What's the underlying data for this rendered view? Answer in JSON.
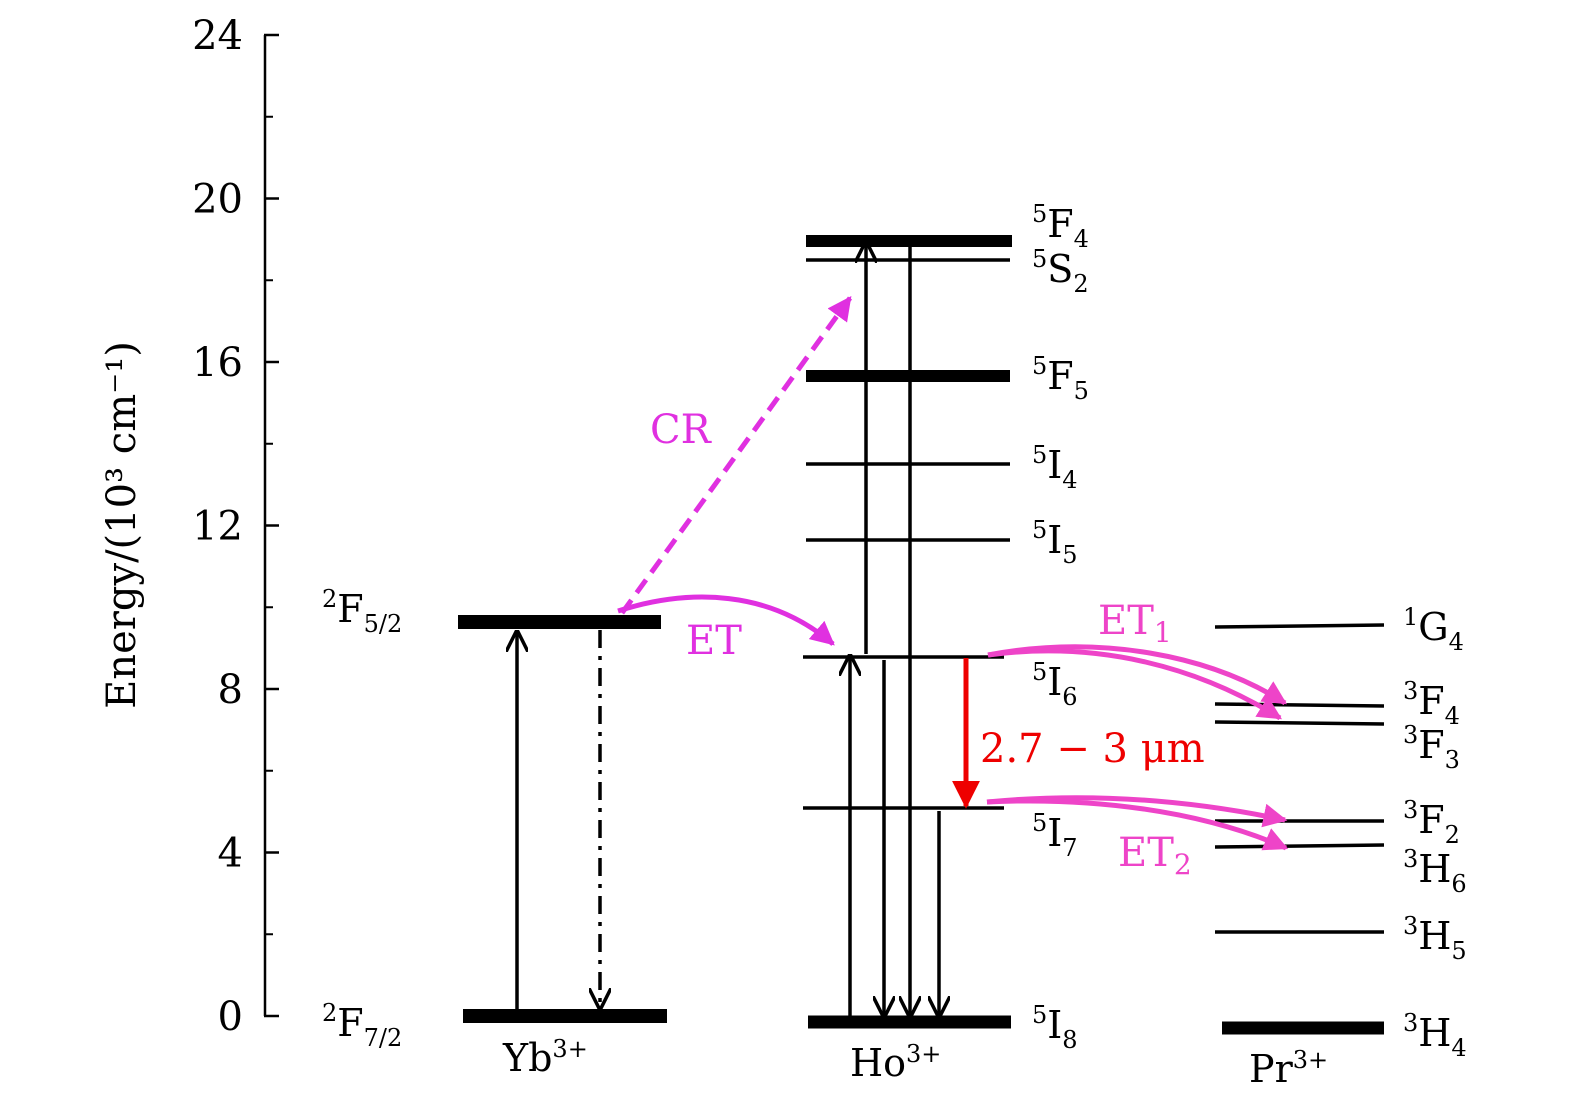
{
  "axis": {
    "ylabel": "Energy/(10³ cm⁻¹)",
    "ylim": [
      0,
      24
    ],
    "major_ticks": [
      0,
      4,
      8,
      12,
      16,
      20,
      24
    ],
    "minor_ticks": [
      2,
      6,
      10,
      14,
      18,
      22
    ],
    "tick_labels": [
      "0",
      "4",
      "8",
      "12",
      "16",
      "20",
      "24"
    ]
  },
  "ions": {
    "yb": {
      "label": "Yb",
      "charge": "3+"
    },
    "ho": {
      "label": "Ho",
      "charge": "3+"
    },
    "pr": {
      "label": "Pr",
      "charge": "3+"
    }
  },
  "levels": {
    "yb": [
      {
        "energy": 0.0,
        "mult": "2",
        "letter": "F",
        "sub": "7/2"
      },
      {
        "energy": 9.6,
        "mult": "2",
        "letter": "F",
        "sub": "5/2"
      }
    ],
    "ho": [
      {
        "energy": -0.2,
        "mult": "5",
        "letter": "I",
        "sub": "8"
      },
      {
        "energy": 5.0,
        "mult": "5",
        "letter": "I",
        "sub": "7"
      },
      {
        "energy": 8.7,
        "mult": "5",
        "letter": "I",
        "sub": "6"
      },
      {
        "energy": 11.6,
        "mult": "5",
        "letter": "I",
        "sub": "5"
      },
      {
        "energy": 13.4,
        "mult": "5",
        "letter": "I",
        "sub": "4"
      },
      {
        "energy": 15.6,
        "mult": "5",
        "letter": "F",
        "sub": "5"
      },
      {
        "energy": 18.5,
        "mult": "5",
        "letter": "S",
        "sub": "2"
      },
      {
        "energy": 19.0,
        "mult": "5",
        "letter": "F",
        "sub": "4"
      }
    ],
    "pr": [
      {
        "energy": -0.3,
        "mult": "3",
        "letter": "H",
        "sub": "4"
      },
      {
        "energy": 2.0,
        "mult": "3",
        "letter": "H",
        "sub": "5"
      },
      {
        "energy": 4.1,
        "mult": "3",
        "letter": "H",
        "sub": "6"
      },
      {
        "energy": 4.7,
        "mult": "3",
        "letter": "F",
        "sub": "2"
      },
      {
        "energy": 7.1,
        "mult": "3",
        "letter": "F",
        "sub": "3"
      },
      {
        "energy": 7.5,
        "mult": "3",
        "letter": "F",
        "sub": "4"
      },
      {
        "energy": 9.5,
        "mult": "1",
        "letter": "G",
        "sub": "4"
      }
    ]
  },
  "annotations": {
    "cr": "CR",
    "et": "ET",
    "et1": {
      "main": "ET",
      "sub": "1"
    },
    "et2": {
      "main": "ET",
      "sub": "2"
    },
    "emission": "2.7 − 3 μm"
  },
  "colors": {
    "magenta": "#e030e0",
    "pink": "#ee44c8",
    "red": "#ee0000",
    "black": "#000000"
  }
}
